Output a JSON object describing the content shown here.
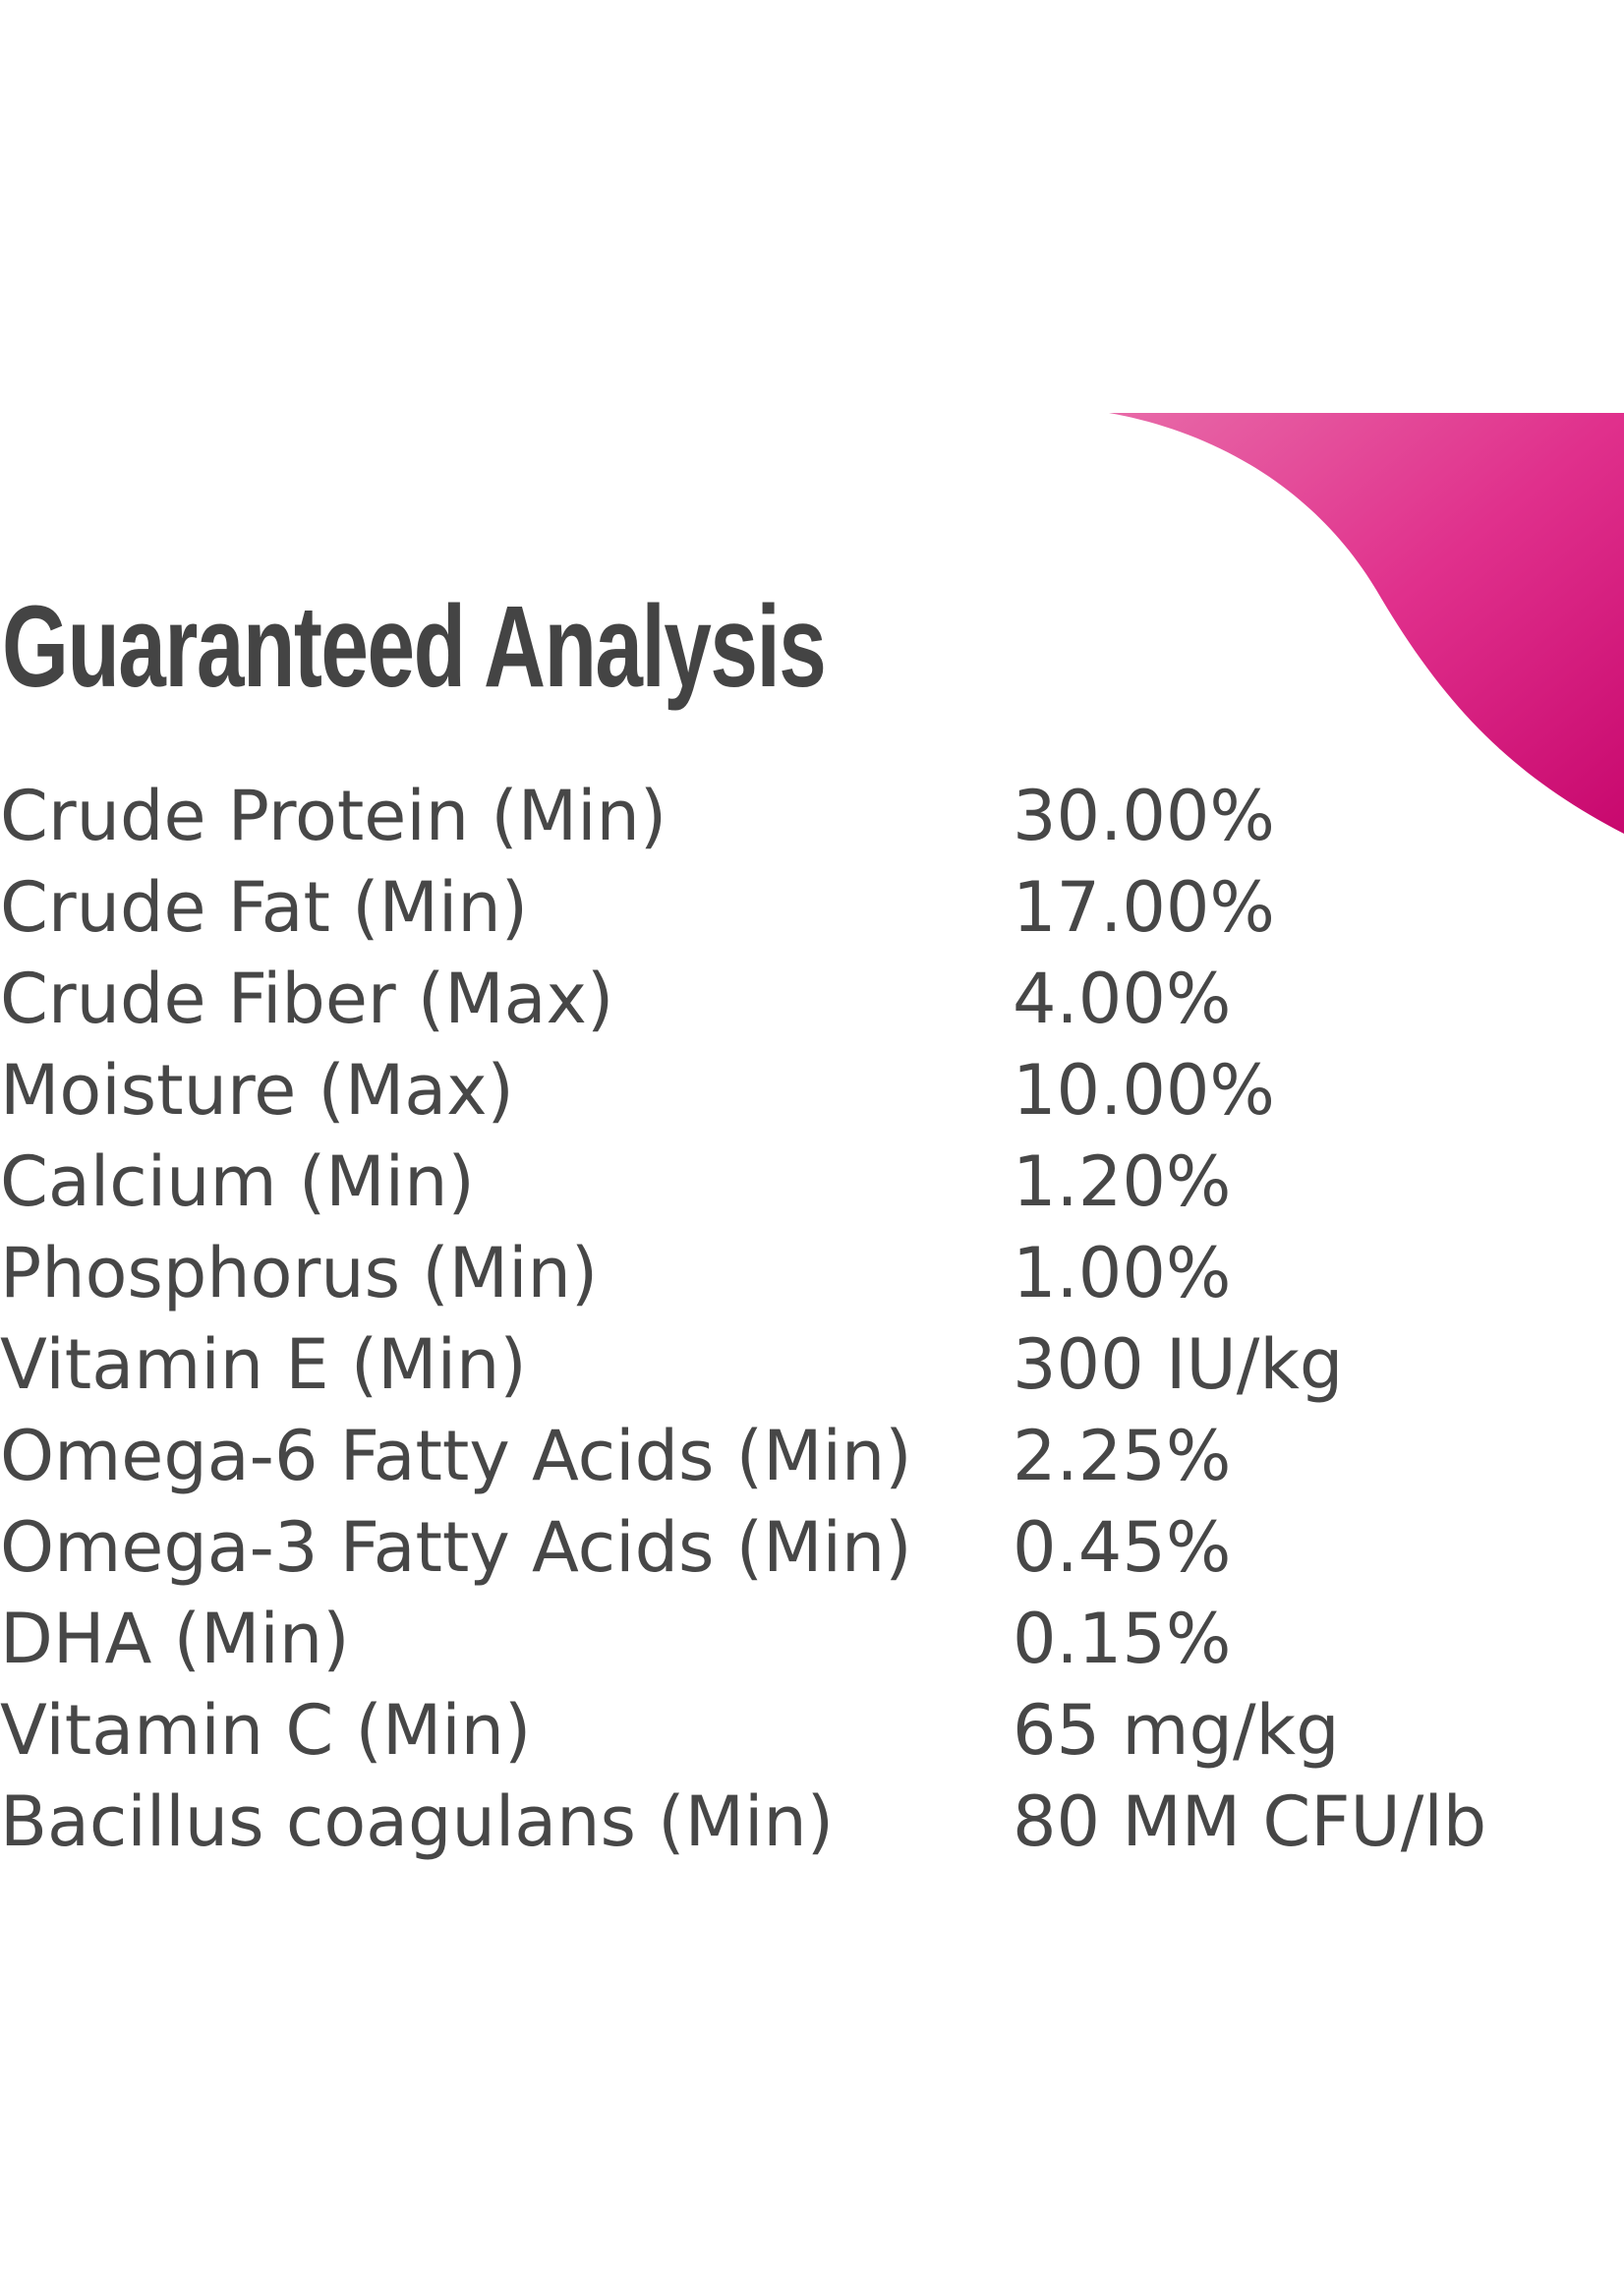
{
  "title": "Guaranteed Analysis",
  "table": {
    "rows": [
      [
        "Crude Protein (Min)",
        "30.00%"
      ],
      [
        "Crude Fat (Min)",
        "17.00%"
      ],
      [
        "Crude Fiber (Max)",
        "4.00%"
      ],
      [
        "Moisture (Max)",
        "10.00%"
      ],
      [
        "Calcium (Min)",
        "1.20%"
      ],
      [
        "Phosphorus (Min)",
        "1.00%"
      ],
      [
        "Vitamin E (Min)",
        "300 IU/kg"
      ],
      [
        "Omega-6 Fatty Acids (Min)",
        "2.25%"
      ],
      [
        "Omega-3 Fatty Acids (Min)",
        "0.45%"
      ],
      [
        "DHA (Min)",
        "0.15%"
      ],
      [
        "Vitamin C (Min)",
        "65 mg/kg"
      ],
      [
        "Bacillus coagulans (Min)",
        "80 MM CFU/lb"
      ]
    ]
  }
}
